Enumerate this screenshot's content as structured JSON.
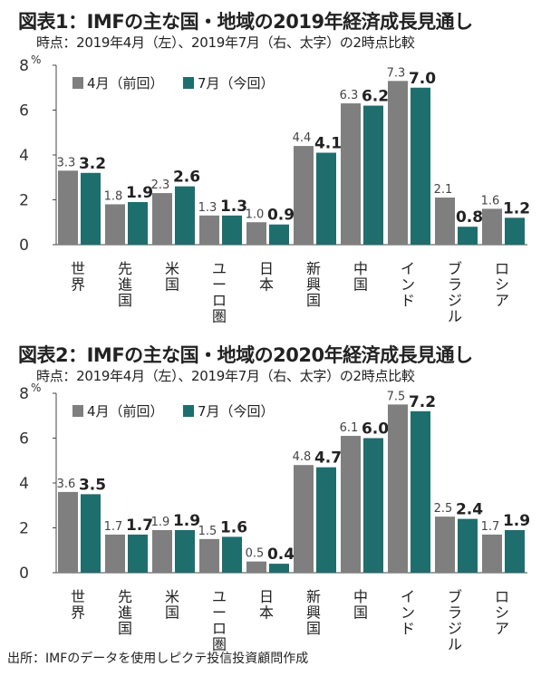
{
  "colors": {
    "previous": "#7f7f7f",
    "current": "#1e6e6e",
    "axis": "#444444"
  },
  "legend": {
    "previous": "4月（前回）",
    "current": "7月（今回）"
  },
  "source": "出所：IMFのデータを使用しピクテ投信投資顧問作成",
  "chart_data": [
    {
      "type": "bar",
      "title": "図表1：IMFの主な国・地域の2019年経済成長見通し",
      "subtitle": "時点：2019年4月（左）、2019年7月（右、太字）の2時点比較",
      "ylabel": "%",
      "ylim": [
        0,
        8
      ],
      "yticks": [
        0,
        2,
        4,
        6,
        8
      ],
      "legend_position": "top-left",
      "categories": [
        "世界",
        "先進国",
        "米国",
        "ユーロ圏",
        "日本",
        "新興国",
        "中国",
        "インド",
        "ブラジル",
        "ロシア"
      ],
      "series": [
        {
          "name": "4月（前回）",
          "values": [
            3.3,
            1.8,
            2.3,
            1.3,
            1.0,
            4.4,
            6.3,
            7.3,
            2.1,
            1.6
          ],
          "labels": [
            "3.3",
            "1.8",
            "2.3",
            "1.3",
            "1.0",
            "4.4",
            "6.3",
            "7.3",
            "2.1",
            "1.6"
          ]
        },
        {
          "name": "7月（今回）",
          "values": [
            3.2,
            1.9,
            2.6,
            1.3,
            0.9,
            4.1,
            6.2,
            7.0,
            0.8,
            1.2
          ],
          "labels": [
            "3.2",
            "1.9",
            "2.6",
            "1.3",
            "0.9",
            "4.1",
            "6.2",
            "7.0",
            "0.8",
            "1.2"
          ]
        }
      ]
    },
    {
      "type": "bar",
      "title": "図表2：IMFの主な国・地域の2020年経済成長見通し",
      "subtitle": "時点：2019年4月（左）、2019年7月（右、太字）の2時点比較",
      "ylabel": "%",
      "ylim": [
        0,
        8
      ],
      "yticks": [
        0,
        2,
        4,
        6,
        8
      ],
      "legend_position": "top-left",
      "categories": [
        "世界",
        "先進国",
        "米国",
        "ユーロ圏",
        "日本",
        "新興国",
        "中国",
        "インド",
        "ブラジル",
        "ロシア"
      ],
      "series": [
        {
          "name": "4月（前回）",
          "values": [
            3.6,
            1.7,
            1.9,
            1.5,
            0.5,
            4.8,
            6.1,
            7.5,
            2.5,
            1.7
          ],
          "labels": [
            "3.6",
            "1.7",
            "1.9",
            "1.5",
            "0.5",
            "4.8",
            "6.1",
            "7.5",
            "2.5",
            "1.7"
          ]
        },
        {
          "name": "7月（今回）",
          "values": [
            3.5,
            1.7,
            1.9,
            1.6,
            0.4,
            4.7,
            6.0,
            7.2,
            2.4,
            1.9
          ],
          "labels": [
            "3.5",
            "1.7",
            "1.9",
            "1.6",
            "0.4",
            "4.7",
            "6.0",
            "7.2",
            "2.4",
            "1.9"
          ]
        }
      ]
    }
  ]
}
